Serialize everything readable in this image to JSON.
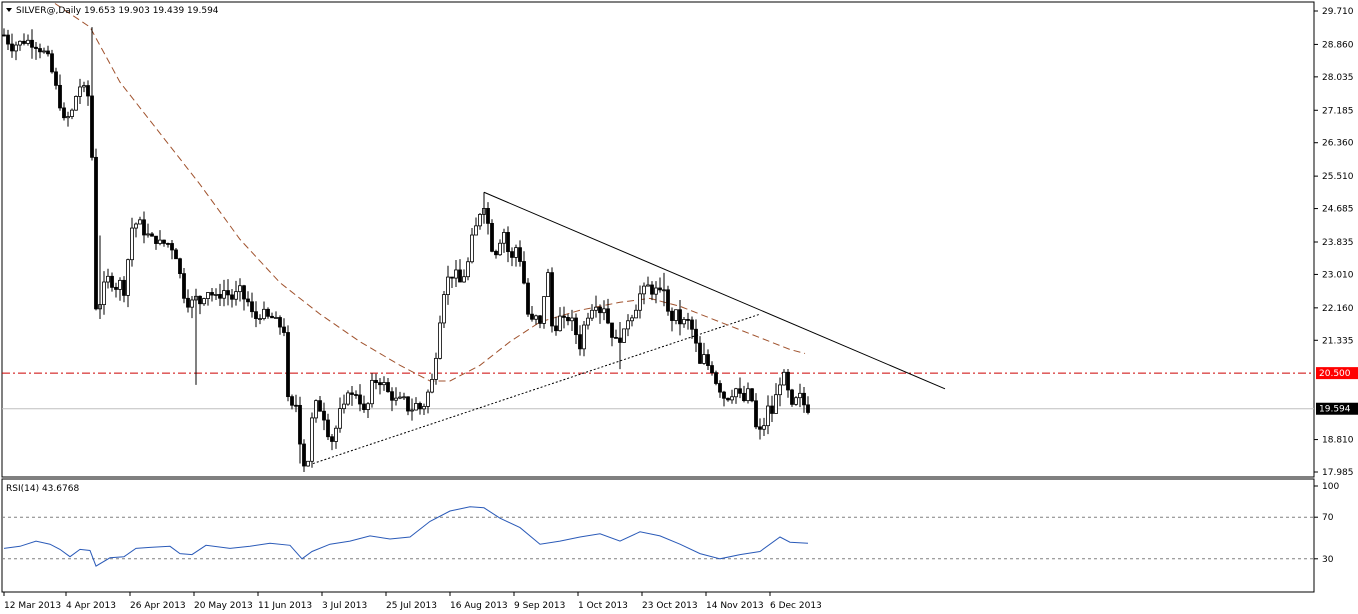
{
  "header": {
    "symbol_line": "SILVER@,Daily  19.653 19.903 19.439 19.594",
    "collapse_icon": "triangle-down-icon"
  },
  "rsi_header": "RSI(14) 43.6768",
  "chart_data": {
    "type": "candlestick",
    "symbol": "SILVER@",
    "timeframe": "Daily",
    "ohlc_last": {
      "open": 19.653,
      "high": 19.903,
      "low": 19.439,
      "close": 19.594
    },
    "y_ticks": [
      "29.710",
      "28.860",
      "28.035",
      "27.185",
      "26.360",
      "25.510",
      "24.685",
      "23.835",
      "23.010",
      "22.160",
      "21.335",
      "20.500",
      "19.594",
      "18.810",
      "17.985"
    ],
    "ylim": [
      17.9,
      29.9
    ],
    "x_ticks": [
      "12 Mar 2013",
      "4 Apr 2013",
      "26 Apr 2013",
      "20 May 2013",
      "11 Jun 2013",
      "3 Jul 2013",
      "25 Jul 2013",
      "16 Aug 2013",
      "9 Sep 2013",
      "1 Oct 2013",
      "23 Oct 2013",
      "14 Nov 2013",
      "6 Dec 2013"
    ],
    "price_path": [
      [
        0,
        29.3
      ],
      [
        6,
        29.0
      ],
      [
        12,
        28.8
      ],
      [
        18,
        28.9
      ],
      [
        22,
        28.9
      ],
      [
        26,
        29.0
      ],
      [
        30,
        28.9
      ],
      [
        34,
        28.9
      ],
      [
        38,
        28.8
      ],
      [
        42,
        28.7
      ],
      [
        46,
        28.6
      ],
      [
        50,
        28.4
      ],
      [
        54,
        27.9
      ],
      [
        58,
        27.6
      ],
      [
        62,
        27.1
      ],
      [
        64,
        26.9
      ],
      [
        66,
        27.0
      ],
      [
        70,
        27.0
      ],
      [
        74,
        27.3
      ],
      [
        78,
        27.8
      ],
      [
        82,
        27.8
      ],
      [
        86,
        27.6
      ],
      [
        90,
        27.5
      ],
      [
        92,
        26.0
      ],
      [
        96,
        22.2
      ],
      [
        100,
        22.3
      ],
      [
        104,
        22.7
      ],
      [
        108,
        22.9
      ],
      [
        112,
        22.8
      ],
      [
        116,
        22.7
      ],
      [
        120,
        22.8
      ],
      [
        124,
        22.6
      ],
      [
        128,
        23.4
      ],
      [
        132,
        24.2
      ],
      [
        136,
        24.3
      ],
      [
        140,
        24.3
      ],
      [
        144,
        24.1
      ],
      [
        148,
        24.0
      ],
      [
        152,
        23.9
      ],
      [
        156,
        23.9
      ],
      [
        160,
        23.8
      ],
      [
        164,
        23.8
      ],
      [
        168,
        23.8
      ],
      [
        172,
        23.7
      ],
      [
        176,
        23.5
      ],
      [
        180,
        23.0
      ],
      [
        184,
        22.5
      ],
      [
        188,
        22.3
      ],
      [
        192,
        22.3
      ],
      [
        196,
        22.4
      ],
      [
        200,
        22.3
      ],
      [
        204,
        22.5
      ],
      [
        208,
        22.6
      ],
      [
        212,
        22.5
      ],
      [
        216,
        22.4
      ],
      [
        220,
        22.5
      ],
      [
        224,
        22.6
      ],
      [
        228,
        22.5
      ],
      [
        232,
        22.4
      ],
      [
        236,
        22.5
      ],
      [
        240,
        22.6
      ],
      [
        244,
        22.4
      ],
      [
        248,
        22.3
      ],
      [
        252,
        22.0
      ],
      [
        256,
        21.9
      ],
      [
        260,
        22.0
      ],
      [
        264,
        22.0
      ],
      [
        268,
        21.9
      ],
      [
        272,
        21.9
      ],
      [
        276,
        21.8
      ],
      [
        280,
        21.7
      ],
      [
        284,
        21.6
      ],
      [
        288,
        19.8
      ],
      [
        292,
        19.6
      ],
      [
        296,
        19.7
      ],
      [
        300,
        18.8
      ],
      [
        304,
        18.2
      ],
      [
        308,
        18.3
      ],
      [
        312,
        19.3
      ],
      [
        316,
        19.7
      ],
      [
        320,
        19.6
      ],
      [
        324,
        19.4
      ],
      [
        328,
        19.0
      ],
      [
        332,
        18.8
      ],
      [
        336,
        19.1
      ],
      [
        340,
        19.5
      ],
      [
        344,
        19.6
      ],
      [
        348,
        20.1
      ],
      [
        352,
        19.9
      ],
      [
        356,
        20.0
      ],
      [
        360,
        19.8
      ],
      [
        364,
        19.5
      ],
      [
        368,
        19.7
      ],
      [
        372,
        20.2
      ],
      [
        376,
        20.3
      ],
      [
        380,
        20.3
      ],
      [
        384,
        20.2
      ],
      [
        388,
        20.0
      ],
      [
        392,
        19.9
      ],
      [
        396,
        19.8
      ],
      [
        400,
        19.8
      ],
      [
        404,
        19.8
      ],
      [
        408,
        19.6
      ],
      [
        412,
        19.6
      ],
      [
        416,
        19.7
      ],
      [
        420,
        19.6
      ],
      [
        424,
        19.7
      ],
      [
        428,
        20.0
      ],
      [
        432,
        20.3
      ],
      [
        436,
        21.0
      ],
      [
        440,
        21.9
      ],
      [
        444,
        22.6
      ],
      [
        448,
        22.9
      ],
      [
        452,
        23.0
      ],
      [
        456,
        23.0
      ],
      [
        460,
        22.8
      ],
      [
        464,
        23.0
      ],
      [
        468,
        23.3
      ],
      [
        472,
        23.9
      ],
      [
        476,
        24.2
      ],
      [
        480,
        24.6
      ],
      [
        484,
        24.8
      ],
      [
        488,
        24.3
      ],
      [
        492,
        23.7
      ],
      [
        496,
        23.6
      ],
      [
        500,
        23.9
      ],
      [
        504,
        24.1
      ],
      [
        508,
        23.6
      ],
      [
        512,
        23.4
      ],
      [
        516,
        23.7
      ],
      [
        520,
        23.4
      ],
      [
        524,
        22.8
      ],
      [
        528,
        22.0
      ],
      [
        532,
        21.8
      ],
      [
        536,
        21.9
      ],
      [
        540,
        21.7
      ],
      [
        544,
        22.5
      ],
      [
        548,
        23.0
      ],
      [
        552,
        21.7
      ],
      [
        556,
        21.7
      ],
      [
        560,
        21.9
      ],
      [
        564,
        21.8
      ],
      [
        568,
        21.9
      ],
      [
        572,
        21.8
      ],
      [
        576,
        21.5
      ],
      [
        580,
        21.2
      ],
      [
        584,
        21.7
      ],
      [
        588,
        22.0
      ],
      [
        592,
        22.2
      ],
      [
        596,
        22.3
      ],
      [
        600,
        22.1
      ],
      [
        604,
        22.2
      ],
      [
        608,
        21.8
      ],
      [
        612,
        21.5
      ],
      [
        616,
        21.3
      ],
      [
        620,
        21.4
      ],
      [
        624,
        21.5
      ],
      [
        628,
        21.9
      ],
      [
        632,
        22.0
      ],
      [
        636,
        22.2
      ],
      [
        640,
        22.5
      ],
      [
        644,
        22.6
      ],
      [
        648,
        22.7
      ],
      [
        652,
        22.6
      ],
      [
        656,
        22.6
      ],
      [
        660,
        22.5
      ],
      [
        664,
        22.7
      ],
      [
        668,
        22.0
      ],
      [
        672,
        21.9
      ],
      [
        676,
        22.0
      ],
      [
        680,
        21.8
      ],
      [
        684,
        21.8
      ],
      [
        688,
        21.8
      ],
      [
        692,
        21.6
      ],
      [
        696,
        21.2
      ],
      [
        700,
        20.7
      ],
      [
        704,
        20.9
      ],
      [
        708,
        20.7
      ],
      [
        712,
        20.6
      ],
      [
        716,
        20.3
      ],
      [
        720,
        20.1
      ],
      [
        724,
        19.9
      ],
      [
        728,
        19.9
      ],
      [
        732,
        20.0
      ],
      [
        736,
        20.1
      ],
      [
        740,
        19.9
      ],
      [
        744,
        19.8
      ],
      [
        748,
        20.0
      ],
      [
        752,
        19.8
      ],
      [
        756,
        19.1
      ],
      [
        760,
        19.0
      ],
      [
        764,
        19.2
      ],
      [
        768,
        19.6
      ],
      [
        772,
        19.5
      ],
      [
        776,
        19.9
      ],
      [
        780,
        20.3
      ],
      [
        784,
        20.4
      ],
      [
        788,
        20.0
      ],
      [
        792,
        19.6
      ],
      [
        796,
        19.8
      ],
      [
        800,
        19.9
      ],
      [
        804,
        19.7
      ],
      [
        808,
        19.6
      ]
    ],
    "moving_average": [
      [
        55,
        29.9
      ],
      [
        90,
        29.3
      ],
      [
        120,
        27.9
      ],
      [
        160,
        26.6
      ],
      [
        200,
        25.3
      ],
      [
        240,
        23.9
      ],
      [
        280,
        22.8
      ],
      [
        320,
        22.0
      ],
      [
        360,
        21.3
      ],
      [
        400,
        20.7
      ],
      [
        430,
        20.3
      ],
      [
        450,
        20.3
      ],
      [
        480,
        20.7
      ],
      [
        510,
        21.3
      ],
      [
        540,
        21.8
      ],
      [
        580,
        22.1
      ],
      [
        620,
        22.3
      ],
      [
        650,
        22.4
      ],
      [
        680,
        22.2
      ],
      [
        720,
        21.8
      ],
      [
        760,
        21.4
      ],
      [
        790,
        21.1
      ],
      [
        805,
        21.0
      ]
    ],
    "trendlines": [
      {
        "style": "solid",
        "from": [
          484,
          25.1
        ],
        "to": [
          945,
          20.1
        ]
      },
      {
        "style": "dotted",
        "from": [
          313,
          18.2
        ],
        "to": [
          760,
          22.0
        ]
      }
    ],
    "support_level": {
      "value": "20.500",
      "color": "#ff0000"
    },
    "current_level": {
      "value": "19.594"
    },
    "rsi": {
      "period": 14,
      "levels": [
        "70",
        "30"
      ],
      "ticks": [
        "100",
        "70",
        "30"
      ],
      "points": [
        [
          4,
          40
        ],
        [
          20,
          42
        ],
        [
          36,
          47
        ],
        [
          50,
          44
        ],
        [
          60,
          39
        ],
        [
          70,
          32
        ],
        [
          80,
          39
        ],
        [
          90,
          38
        ],
        [
          96,
          23
        ],
        [
          110,
          31
        ],
        [
          124,
          32
        ],
        [
          136,
          40
        ],
        [
          150,
          41
        ],
        [
          170,
          42
        ],
        [
          180,
          35
        ],
        [
          192,
          34
        ],
        [
          206,
          43
        ],
        [
          230,
          40
        ],
        [
          250,
          42
        ],
        [
          270,
          45
        ],
        [
          290,
          43
        ],
        [
          302,
          30
        ],
        [
          312,
          37
        ],
        [
          330,
          44
        ],
        [
          350,
          47
        ],
        [
          370,
          52
        ],
        [
          390,
          49
        ],
        [
          410,
          51
        ],
        [
          430,
          66
        ],
        [
          450,
          76
        ],
        [
          470,
          80
        ],
        [
          484,
          79
        ],
        [
          500,
          69
        ],
        [
          520,
          60
        ],
        [
          540,
          44
        ],
        [
          560,
          47
        ],
        [
          580,
          51
        ],
        [
          600,
          54
        ],
        [
          620,
          47
        ],
        [
          640,
          56
        ],
        [
          660,
          52
        ],
        [
          680,
          44
        ],
        [
          700,
          35
        ],
        [
          720,
          30
        ],
        [
          740,
          34
        ],
        [
          760,
          37
        ],
        [
          780,
          51
        ],
        [
          790,
          46
        ],
        [
          808,
          45
        ]
      ]
    }
  },
  "colors": {
    "candle": "#000000",
    "moving_average": "#a0522d",
    "support_line": "#cc0000",
    "rsi_line": "#2a5ab8",
    "grid": "#bfbfbf"
  }
}
